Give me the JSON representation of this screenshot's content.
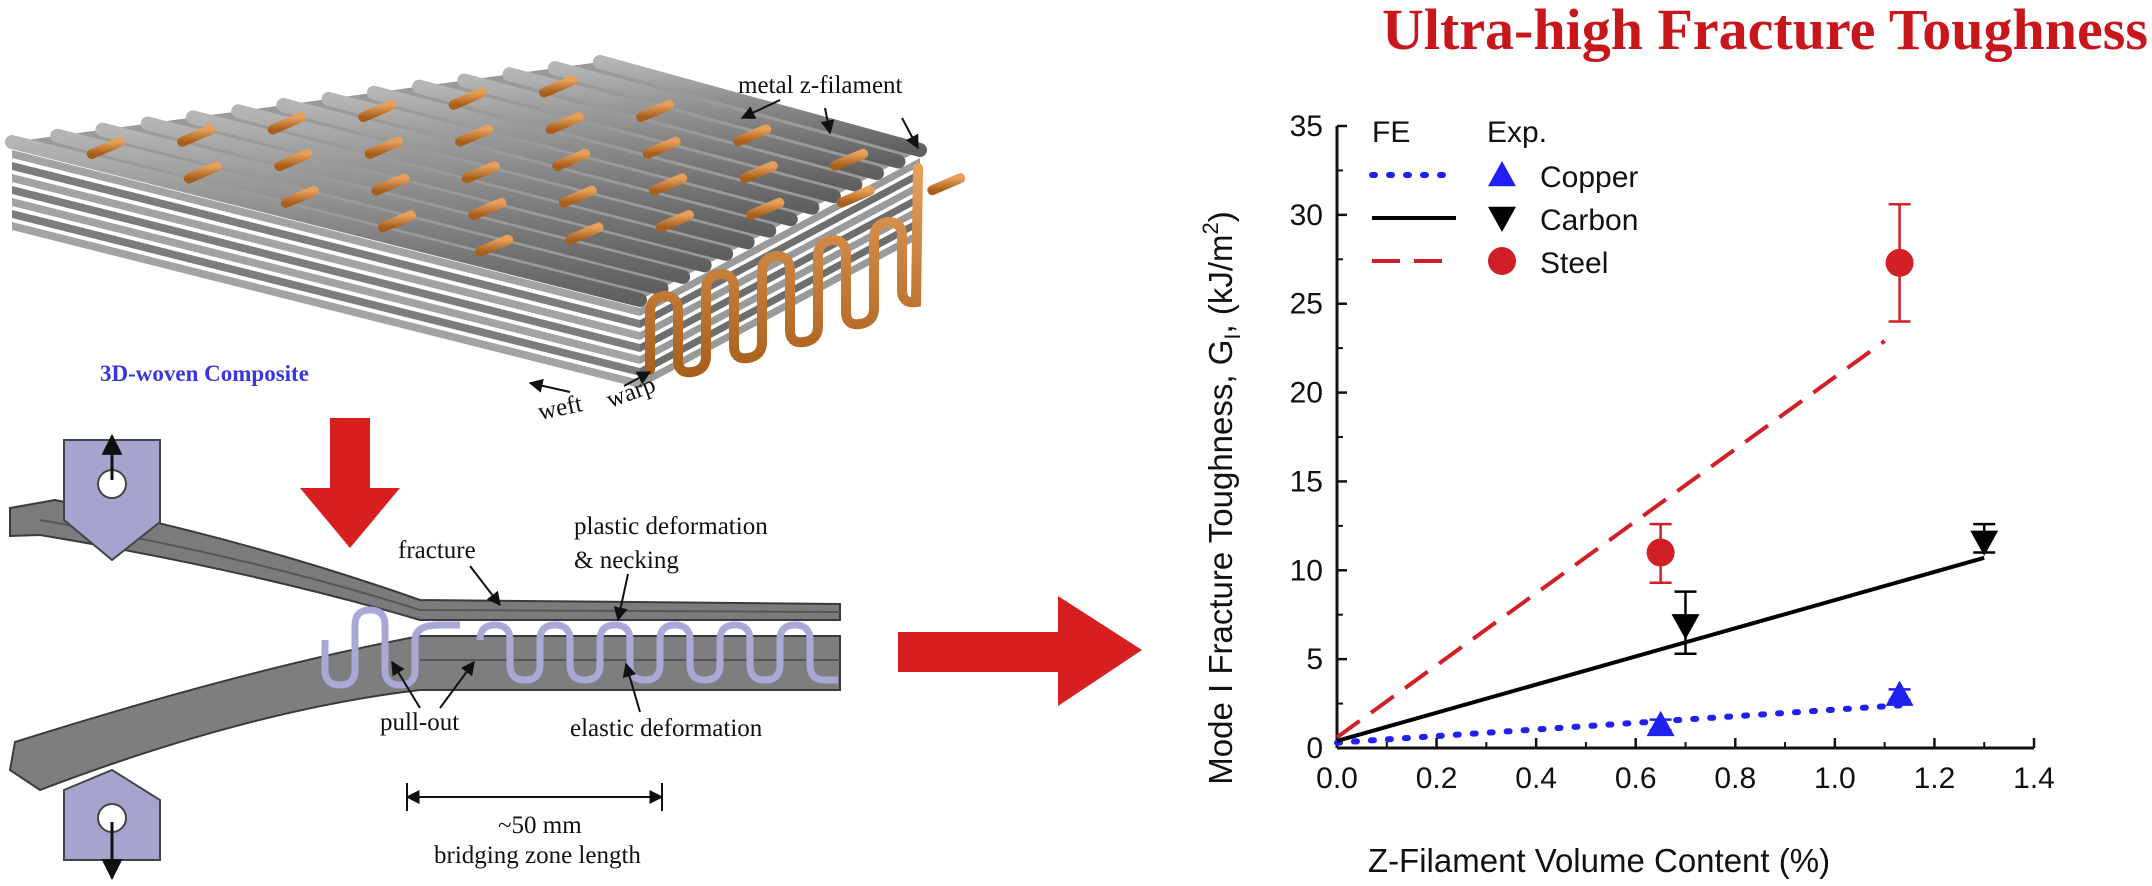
{
  "title": "Ultra-high Fracture Toughness in Composites",
  "left_panel": {
    "label_metal_z_filament": "metal z-filament",
    "label_3d_woven": "3D-woven Composite",
    "label_weft": "weft",
    "label_warp": "warp",
    "label_fracture": "fracture",
    "label_plastic_1": "plastic deformation",
    "label_plastic_2": "& necking",
    "label_pull_out": "pull-out",
    "label_elastic": "elastic deformation",
    "label_length": "~50 mm",
    "label_bridging": "bridging zone length"
  },
  "colors": {
    "title": "#c8161d",
    "arrow": "#d71f1f",
    "copper": "#2020f0",
    "carbon": "#000000",
    "steel": "#d21f26",
    "filament": "#c8782a",
    "fiber": "#8c8c8c",
    "zfil": "#a9a8d6",
    "clamp": "#a6a4cf"
  },
  "chart_data": {
    "type": "scatter",
    "xlabel": "Z-Filament Volume Content (%)",
    "ylabel_main": "Mode I Fracture Toughness, G",
    "ylabel_sub": "I",
    "ylabel_tail": ", (kJ/m",
    "ylabel_sup": "2",
    "ylabel_close": ")",
    "xlim": [
      0.0,
      1.4
    ],
    "ylim": [
      0,
      35
    ],
    "xticks": [
      "0.0",
      "0.2",
      "0.4",
      "0.6",
      "0.8",
      "1.0",
      "1.2",
      "1.4"
    ],
    "yticks": [
      "0",
      "5",
      "10",
      "15",
      "20",
      "25",
      "30",
      "35"
    ],
    "legend_header_fe": "FE",
    "legend_header_exp": "Exp.",
    "legend_position": "top-left",
    "series": [
      {
        "name": "Copper",
        "color": "#2020f0",
        "line_style": "dotted",
        "marker": "triangle-up",
        "fe_line": [
          [
            0.0,
            0.3
          ],
          [
            1.13,
            2.4
          ]
        ],
        "exp_points": [
          {
            "x": 0.65,
            "y": 1.3,
            "err_low": 0.3,
            "err_high": 0.3
          },
          {
            "x": 1.13,
            "y": 3.0,
            "err_low": 0.3,
            "err_high": 0.3
          }
        ]
      },
      {
        "name": "Carbon",
        "color": "#000000",
        "line_style": "solid",
        "marker": "triangle-down",
        "fe_line": [
          [
            0.0,
            0.4
          ],
          [
            1.3,
            10.7
          ]
        ],
        "exp_points": [
          {
            "x": 0.7,
            "y": 6.9,
            "err_low": 1.6,
            "err_high": 1.9
          },
          {
            "x": 1.3,
            "y": 11.6,
            "err_low": 0.6,
            "err_high": 1.0
          }
        ]
      },
      {
        "name": "Steel",
        "color": "#d21f26",
        "line_style": "dashed",
        "marker": "circle",
        "fe_line": [
          [
            0.0,
            0.6
          ],
          [
            1.1,
            22.9
          ]
        ],
        "exp_points": [
          {
            "x": 0.65,
            "y": 11.0,
            "err_low": 1.7,
            "err_high": 1.6
          },
          {
            "x": 1.13,
            "y": 27.3,
            "err_low": 3.3,
            "err_high": 3.3
          }
        ]
      }
    ]
  }
}
